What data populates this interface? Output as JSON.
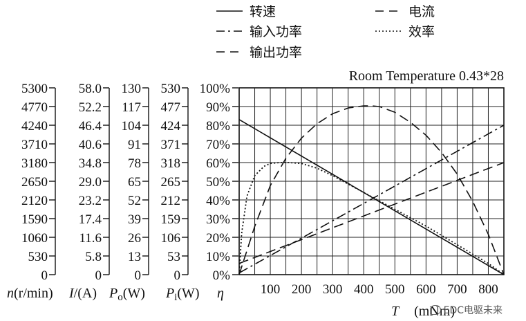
{
  "chart_data": {
    "type": "line",
    "title": "",
    "annotation": "Room Temperature 0.43*28",
    "x": {
      "label_symbol": "T",
      "label_unit": "(mNm)",
      "range": [
        0,
        850
      ],
      "ticks": [
        100,
        200,
        300,
        400,
        500,
        600,
        700,
        800
      ],
      "grid_minor_step": 50
    },
    "y_axes": [
      {
        "label_symbol": "n",
        "label_unit": "(r/min)",
        "ticks": [
          "5300",
          "4770",
          "4240",
          "3710",
          "3180",
          "2650",
          "2120",
          "1590",
          "1060",
          "530",
          "0"
        ],
        "range": [
          0,
          5300
        ]
      },
      {
        "label_symbol": "I",
        "label_unit": "/(A)",
        "ticks": [
          "58.0",
          "52.2",
          "46.4",
          "40.6",
          "34.8",
          "29.0",
          "23.2",
          "17.4",
          "11.6",
          "5.8",
          "0"
        ],
        "range": [
          0,
          58
        ]
      },
      {
        "label_symbol": "P",
        "label_sub": "o",
        "label_unit": "(W)",
        "ticks": [
          "130",
          "117",
          "104",
          "91",
          "78",
          "65",
          "52",
          "39",
          "26",
          "13",
          "0"
        ],
        "range": [
          0,
          130
        ]
      },
      {
        "label_symbol": "P",
        "label_sub": "i",
        "label_unit": "(W)",
        "ticks": [
          "530",
          "477",
          "424",
          "371",
          "318",
          "265",
          "212",
          "159",
          "106",
          "53",
          "0"
        ],
        "range": [
          0,
          530
        ]
      },
      {
        "label_symbol": "η",
        "label_unit": "",
        "ticks": [
          "100%",
          "90%",
          "80%",
          "70%",
          "60%",
          "50%",
          "40%",
          "30%",
          "20%",
          "10%",
          "0%"
        ],
        "range": [
          0,
          100
        ]
      }
    ],
    "grid": true,
    "legend": {
      "placement": "top",
      "entries": [
        {
          "name": "转速",
          "style": "solid"
        },
        {
          "name": "电流",
          "style": "dashed"
        },
        {
          "name": "输入功率",
          "style": "dashdot"
        },
        {
          "name": "效率",
          "style": "dotted"
        },
        {
          "name": "输出功率",
          "style": "dashed"
        }
      ]
    },
    "series": [
      {
        "name": "转速",
        "style": "solid",
        "axis": "n (r/min)",
        "x": [
          0,
          850
        ],
        "y": [
          4400,
          0
        ]
      },
      {
        "name": "电流",
        "style": "dashed",
        "axis": "I (A)",
        "x": [
          0,
          850
        ],
        "y": [
          3.5,
          34.8
        ]
      },
      {
        "name": "输入功率",
        "style": "dashdot",
        "axis": "Pi (W)",
        "x": [
          0,
          850
        ],
        "y": [
          5,
          424
        ]
      },
      {
        "name": "效率",
        "style": "dotted",
        "axis": "η (%)",
        "x": [
          0,
          8,
          25,
          50,
          80,
          100,
          130,
          160,
          200,
          250,
          300,
          400,
          500,
          600,
          700,
          800,
          850
        ],
        "y": [
          0,
          22,
          42,
          53,
          58,
          59.5,
          60,
          60,
          59.5,
          57,
          53,
          44,
          35,
          26,
          16,
          6,
          0
        ]
      },
      {
        "name": "输出功率",
        "style": "dashed",
        "axis": "Po (W)",
        "x": [
          0,
          50,
          100,
          150,
          200,
          250,
          300,
          350,
          400,
          425,
          450,
          500,
          550,
          600,
          650,
          700,
          750,
          800,
          850
        ],
        "y": [
          0,
          33.5,
          62,
          81,
          95,
          105,
          112,
          116,
          117.5,
          117.5,
          117,
          113,
          106,
          97,
          85,
          70,
          51,
          28,
          0
        ]
      }
    ]
  },
  "watermark": "EDC电驱未来"
}
